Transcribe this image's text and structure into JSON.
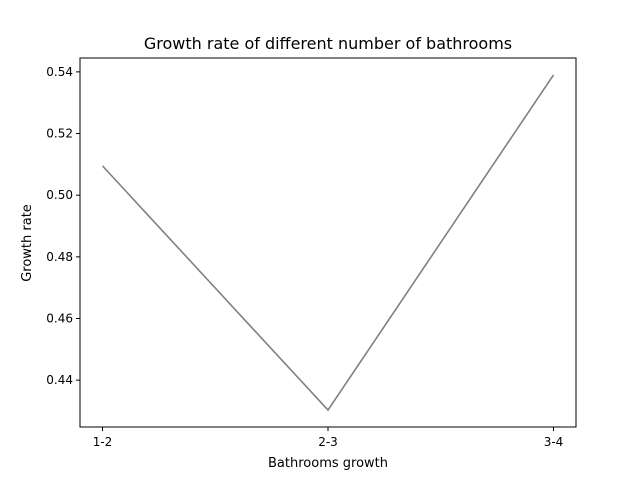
{
  "chart_data": {
    "type": "line",
    "title": "Growth rate of different number of bathrooms",
    "xlabel": "Bathrooms growth",
    "ylabel": "Growth rate",
    "categories": [
      "1-2",
      "2-3",
      "3-4"
    ],
    "series": [
      {
        "values": [
          0.5095,
          0.4303,
          0.539
        ],
        "color": "#808080"
      }
    ],
    "ylim": [
      0.4248,
      0.5445
    ],
    "yticks": [
      0.44,
      0.46,
      0.48,
      0.5,
      0.52,
      0.54
    ],
    "ytick_labels": [
      "0.44",
      "0.46",
      "0.48",
      "0.50",
      "0.52",
      "0.54"
    ],
    "grid": false,
    "legend": "none"
  }
}
